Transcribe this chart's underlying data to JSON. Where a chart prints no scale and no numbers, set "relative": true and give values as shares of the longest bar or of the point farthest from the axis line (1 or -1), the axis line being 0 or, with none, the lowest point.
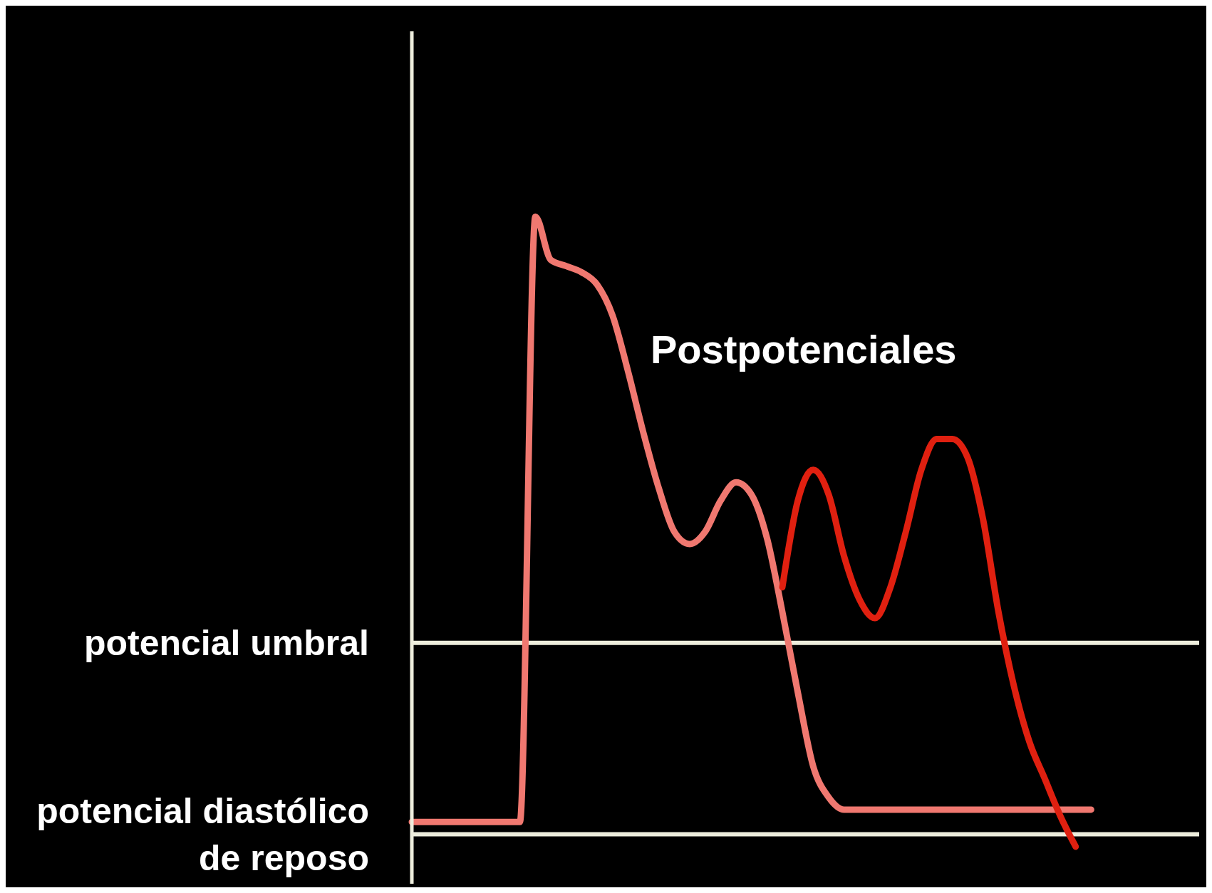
{
  "chart_data": {
    "type": "line",
    "relative": true,
    "categories": [
      null,
      null,
      null,
      null,
      null,
      null,
      null,
      null,
      null,
      null,
      null,
      null,
      null,
      null,
      null,
      null,
      null,
      null,
      null,
      null,
      null,
      null,
      null,
      null,
      null,
      null,
      null,
      null,
      null,
      null,
      null,
      null,
      null,
      null,
      null,
      null,
      null,
      null,
      null,
      null,
      null,
      null,
      null,
      null,
      null,
      null,
      null,
      null,
      null,
      null,
      null,
      null
    ],
    "series": [
      {
        "color": "#f07870",
        "values": [
          0.02,
          0.02,
          0.02,
          0.02,
          0.02,
          0.02,
          0.02,
          0.02,
          1.0,
          0.93,
          0.92,
          0.91,
          0.89,
          0.84,
          0.75,
          0.65,
          0.56,
          0.49,
          0.47,
          0.49,
          0.54,
          0.57,
          0.55,
          0.48,
          0.36,
          0.23,
          0.11,
          0.06,
          0.04,
          0.04,
          0.04,
          0.04,
          0.04,
          0.04,
          0.04,
          0.04,
          0.04,
          0.04,
          0.04,
          0.04,
          0.04,
          0.04,
          0.04,
          0.04,
          0.04,
          null,
          null,
          null,
          null,
          null,
          null,
          null
        ]
      },
      {
        "color": "#e02010",
        "values": [
          null,
          null,
          null,
          null,
          null,
          null,
          null,
          null,
          null,
          null,
          null,
          null,
          null,
          null,
          null,
          null,
          null,
          null,
          null,
          null,
          null,
          null,
          null,
          null,
          0.4,
          0.54,
          0.59,
          0.55,
          0.45,
          0.38,
          0.35,
          0.4,
          0.49,
          0.59,
          0.64,
          0.64,
          0.61,
          0.51,
          0.36,
          0.24,
          0.15,
          0.09,
          0.03,
          -0.02,
          null,
          null,
          null,
          null,
          null,
          null,
          null,
          null
        ]
      }
    ],
    "ref_lines": [
      {
        "axis": "y",
        "value": 0.31,
        "label": "potencial umbral",
        "color": "#eeeedd"
      },
      {
        "axis": "y",
        "value": 0,
        "label": "potencial diastólico de reposo",
        "color": "#eeeedd"
      }
    ],
    "annotations": [
      "Postpotenciales"
    ]
  }
}
